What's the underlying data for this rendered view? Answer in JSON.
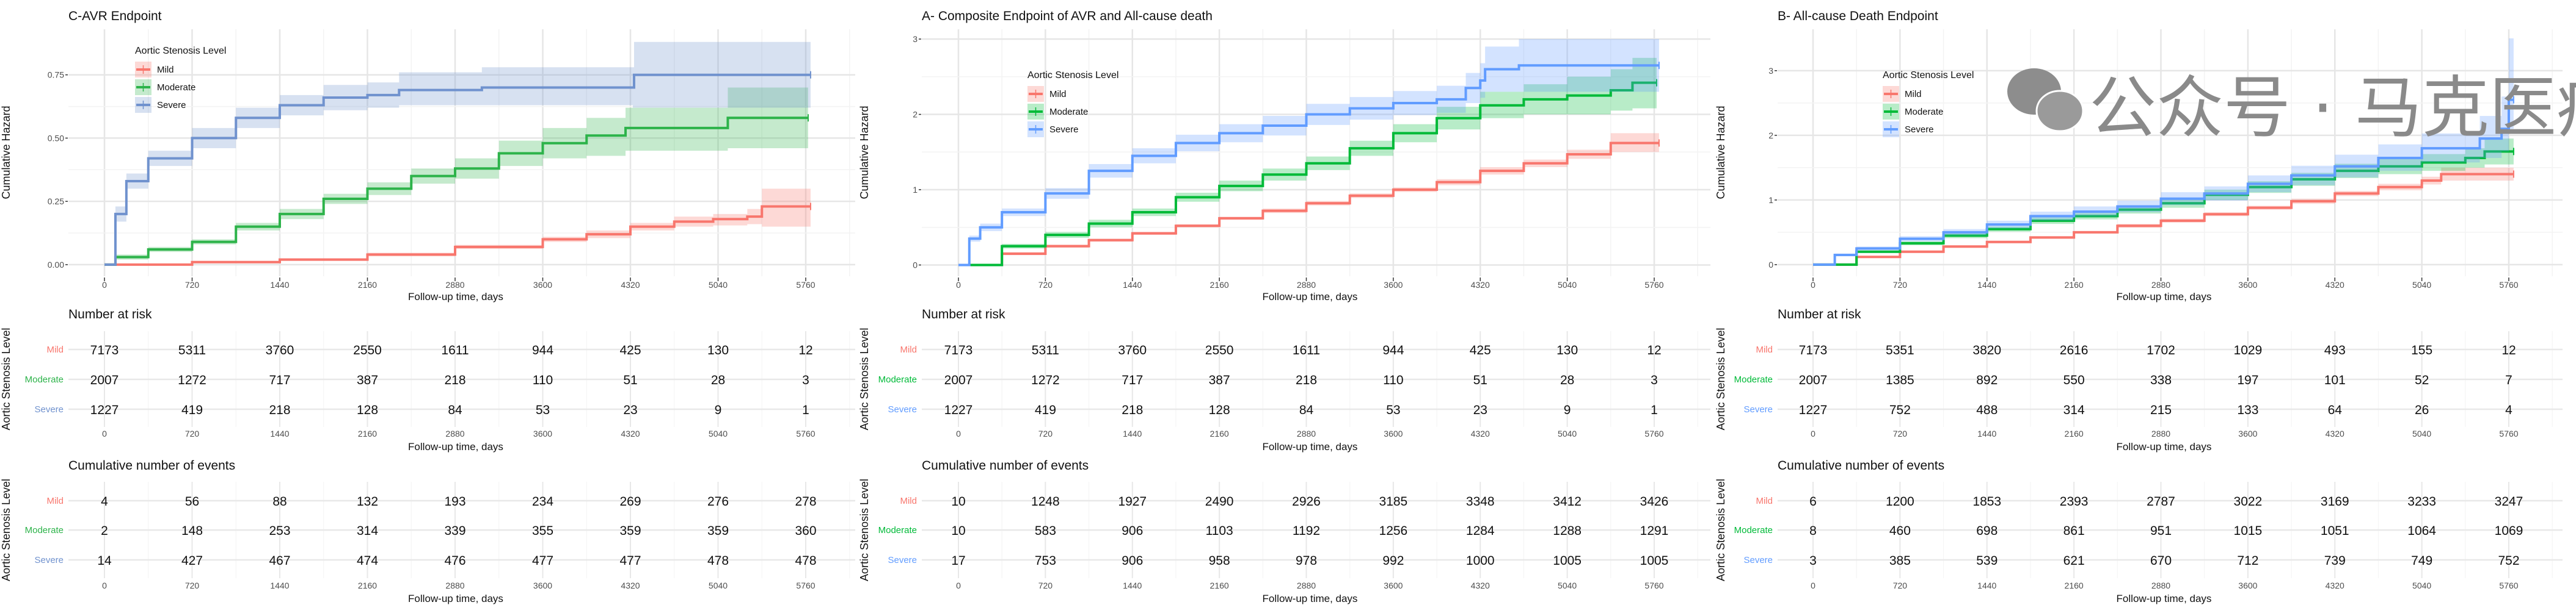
{
  "legend_title": "Aortic Stenosis Level",
  "groups": [
    "Mild",
    "Moderate",
    "Severe"
  ],
  "xlabel": "Follow-up time, days",
  "ylabel": "Cumulative Hazard",
  "table_ylabel": "Aortic Stenosis Level",
  "risk_title": "Number at risk",
  "events_title": "Cumulative number of events",
  "x_ticks": [
    "0",
    "720",
    "1440",
    "2160",
    "2880",
    "3600",
    "4320",
    "5040",
    "5760"
  ],
  "watermark": "公众号 · 马克医疗",
  "chart_data": [
    {
      "type": "line",
      "title": "C-AVR Endpoint",
      "xlim": [
        0,
        5900
      ],
      "ylim": [
        -0.046,
        0.93
      ],
      "y_ticks": [
        0,
        0.25,
        0.5,
        0.75
      ],
      "y_tick_labels": [
        "0.00",
        "0.25",
        "0.50",
        "0.75"
      ],
      "grid": true,
      "legend_position": "top-left",
      "colors": [
        "#F8766D",
        "#2DB34A",
        "#7092CE"
      ],
      "series": [
        {
          "name": "Mild",
          "t": [
            0,
            720,
            1440,
            2160,
            2880,
            3600,
            3960,
            4320,
            4680,
            5000,
            5280,
            5400,
            5800
          ],
          "est": [
            0,
            0.01,
            0.02,
            0.04,
            0.07,
            0.1,
            0.12,
            0.15,
            0.17,
            0.18,
            0.19,
            0.23,
            0.23
          ],
          "lo": [
            0,
            0.005,
            0.015,
            0.033,
            0.062,
            0.09,
            0.105,
            0.135,
            0.15,
            0.155,
            0.16,
            0.15,
            0.15
          ],
          "hi": [
            0,
            0.015,
            0.025,
            0.047,
            0.078,
            0.11,
            0.135,
            0.165,
            0.19,
            0.2,
            0.22,
            0.3,
            0.3
          ]
        },
        {
          "name": "Moderate",
          "t": [
            0,
            90,
            360,
            720,
            1080,
            1440,
            1800,
            2160,
            2520,
            2880,
            3240,
            3600,
            3960,
            4280,
            5100,
            5120,
            5780
          ],
          "est": [
            0,
            0.03,
            0.06,
            0.09,
            0.15,
            0.2,
            0.26,
            0.3,
            0.35,
            0.38,
            0.44,
            0.48,
            0.51,
            0.54,
            0.54,
            0.58,
            0.58
          ],
          "lo": [
            0,
            0.02,
            0.05,
            0.08,
            0.135,
            0.18,
            0.24,
            0.275,
            0.32,
            0.34,
            0.39,
            0.42,
            0.43,
            0.45,
            0.45,
            0.46,
            0.46
          ],
          "hi": [
            0,
            0.04,
            0.07,
            0.1,
            0.165,
            0.22,
            0.28,
            0.325,
            0.38,
            0.42,
            0.49,
            0.54,
            0.58,
            0.62,
            0.62,
            0.7,
            0.7
          ]
        },
        {
          "name": "Severe",
          "t": [
            0,
            90,
            180,
            360,
            720,
            1080,
            1440,
            1800,
            2160,
            2400,
            2420,
            3100,
            4340,
            4350,
            5800
          ],
          "est": [
            0,
            0.2,
            0.33,
            0.42,
            0.5,
            0.58,
            0.63,
            0.66,
            0.67,
            0.67,
            0.69,
            0.7,
            0.7,
            0.75,
            0.75
          ],
          "lo": [
            0,
            0.17,
            0.3,
            0.39,
            0.46,
            0.54,
            0.59,
            0.61,
            0.62,
            0.62,
            0.63,
            0.63,
            0.62,
            0.62,
            0.62
          ],
          "hi": [
            0,
            0.23,
            0.36,
            0.45,
            0.54,
            0.62,
            0.67,
            0.71,
            0.72,
            0.72,
            0.76,
            0.78,
            0.78,
            0.88,
            0.88
          ]
        }
      ],
      "risk_table": {
        "Mild": [
          7173,
          5311,
          3760,
          2550,
          1611,
          944,
          425,
          130,
          12
        ],
        "Moderate": [
          2007,
          1272,
          717,
          387,
          218,
          110,
          51,
          28,
          3
        ],
        "Severe": [
          1227,
          419,
          218,
          128,
          84,
          53,
          23,
          9,
          1
        ]
      },
      "events_table": {
        "Mild": [
          4,
          56,
          88,
          132,
          193,
          234,
          269,
          276,
          278
        ],
        "Moderate": [
          2,
          148,
          253,
          314,
          339,
          355,
          359,
          359,
          360
        ],
        "Severe": [
          14,
          427,
          467,
          474,
          476,
          477,
          477,
          478,
          478
        ]
      }
    },
    {
      "type": "line",
      "title": "A- Composite Endpoint of AVR and All-cause death",
      "xlim": [
        0,
        5900
      ],
      "ylim": [
        -0.15,
        3.13
      ],
      "y_ticks": [
        0,
        1,
        2,
        3
      ],
      "y_tick_labels": [
        "0",
        "1",
        "2",
        "3"
      ],
      "grid": true,
      "legend_position": "top-left",
      "colors": [
        "#F8766D",
        "#00BA38",
        "#619CFF"
      ],
      "series": [
        {
          "name": "Mild",
          "t": [
            0,
            360,
            720,
            1080,
            1440,
            1800,
            2160,
            2520,
            2880,
            3240,
            3600,
            3960,
            4320,
            4680,
            5040,
            5400,
            5800
          ],
          "est": [
            0,
            0.15,
            0.25,
            0.33,
            0.42,
            0.52,
            0.62,
            0.72,
            0.82,
            0.92,
            1.0,
            1.1,
            1.25,
            1.35,
            1.47,
            1.62,
            1.62
          ],
          "lo": [
            0,
            0.13,
            0.23,
            0.31,
            0.4,
            0.5,
            0.6,
            0.69,
            0.79,
            0.89,
            0.97,
            1.06,
            1.2,
            1.3,
            1.41,
            1.5,
            1.5
          ],
          "hi": [
            0,
            0.17,
            0.27,
            0.35,
            0.44,
            0.54,
            0.64,
            0.75,
            0.85,
            0.95,
            1.03,
            1.14,
            1.3,
            1.4,
            1.53,
            1.75,
            1.75
          ]
        },
        {
          "name": "Moderate",
          "t": [
            0,
            360,
            720,
            1080,
            1440,
            1800,
            2160,
            2520,
            2880,
            3240,
            3600,
            3960,
            4320,
            4680,
            5040,
            5400,
            5580,
            5780
          ],
          "est": [
            0,
            0.25,
            0.4,
            0.55,
            0.7,
            0.9,
            1.05,
            1.2,
            1.35,
            1.55,
            1.75,
            1.95,
            2.12,
            2.2,
            2.25,
            2.32,
            2.42,
            2.42
          ],
          "lo": [
            0,
            0.22,
            0.36,
            0.5,
            0.65,
            0.84,
            0.98,
            1.12,
            1.26,
            1.45,
            1.63,
            1.8,
            1.95,
            2.0,
            2.0,
            2.05,
            2.08,
            2.08
          ],
          "hi": [
            0,
            0.28,
            0.44,
            0.6,
            0.75,
            0.96,
            1.12,
            1.28,
            1.44,
            1.65,
            1.87,
            2.1,
            2.3,
            2.4,
            2.5,
            2.6,
            2.75,
            2.75
          ]
        },
        {
          "name": "Severe",
          "t": [
            0,
            90,
            180,
            360,
            720,
            1080,
            1440,
            1800,
            2160,
            2520,
            2880,
            3240,
            3600,
            3960,
            4200,
            4320,
            4360,
            4640,
            5800
          ],
          "est": [
            0,
            0.35,
            0.5,
            0.7,
            0.95,
            1.25,
            1.45,
            1.62,
            1.75,
            1.85,
            2.0,
            2.08,
            2.15,
            2.2,
            2.35,
            2.45,
            2.6,
            2.65,
            2.65
          ],
          "lo": [
            0,
            0.31,
            0.45,
            0.65,
            0.88,
            1.16,
            1.35,
            1.51,
            1.63,
            1.72,
            1.86,
            1.93,
            1.99,
            2.02,
            2.15,
            2.22,
            2.3,
            2.3,
            2.3
          ],
          "hi": [
            0,
            0.39,
            0.55,
            0.75,
            1.02,
            1.34,
            1.55,
            1.73,
            1.87,
            1.98,
            2.14,
            2.23,
            2.31,
            2.38,
            2.55,
            2.68,
            2.9,
            3.0,
            3.0
          ]
        }
      ],
      "risk_table": {
        "Mild": [
          7173,
          5311,
          3760,
          2550,
          1611,
          944,
          425,
          130,
          12
        ],
        "Moderate": [
          2007,
          1272,
          717,
          387,
          218,
          110,
          51,
          28,
          3
        ],
        "Severe": [
          1227,
          419,
          218,
          128,
          84,
          53,
          23,
          9,
          1
        ]
      },
      "events_table": {
        "Mild": [
          10,
          1248,
          1927,
          2490,
          2926,
          3185,
          3348,
          3412,
          3426
        ],
        "Moderate": [
          10,
          583,
          906,
          1103,
          1192,
          1256,
          1284,
          1288,
          1291
        ],
        "Severe": [
          17,
          753,
          906,
          958,
          978,
          992,
          1000,
          1005,
          1005
        ]
      }
    },
    {
      "type": "line",
      "title": "B- All-cause Death Endpoint",
      "xlim": [
        0,
        5900
      ],
      "ylim": [
        -0.18,
        3.64
      ],
      "y_ticks": [
        0,
        1,
        2,
        3
      ],
      "y_tick_labels": [
        "0",
        "1",
        "2",
        "3"
      ],
      "grid": true,
      "legend_position": "top-left",
      "colors": [
        "#F8766D",
        "#00BA38",
        "#619CFF"
      ],
      "series": [
        {
          "name": "Mild",
          "t": [
            0,
            360,
            720,
            1080,
            1440,
            1800,
            2160,
            2520,
            2880,
            3240,
            3600,
            3960,
            4320,
            4680,
            5040,
            5200,
            5800
          ],
          "est": [
            0,
            0.12,
            0.2,
            0.28,
            0.35,
            0.42,
            0.5,
            0.6,
            0.68,
            0.78,
            0.88,
            0.98,
            1.1,
            1.2,
            1.3,
            1.4,
            1.4
          ],
          "lo": [
            0,
            0.11,
            0.18,
            0.26,
            0.33,
            0.4,
            0.48,
            0.57,
            0.65,
            0.75,
            0.85,
            0.94,
            1.06,
            1.15,
            1.24,
            1.3,
            1.3
          ],
          "hi": [
            0,
            0.13,
            0.22,
            0.3,
            0.37,
            0.44,
            0.52,
            0.63,
            0.71,
            0.81,
            0.91,
            1.02,
            1.14,
            1.25,
            1.36,
            1.5,
            1.5
          ]
        },
        {
          "name": "Moderate",
          "t": [
            0,
            360,
            720,
            1080,
            1440,
            1800,
            2160,
            2520,
            2880,
            3240,
            3600,
            3960,
            4320,
            4680,
            5040,
            5400,
            5560,
            5800
          ],
          "est": [
            0,
            0.2,
            0.33,
            0.45,
            0.55,
            0.68,
            0.75,
            0.85,
            0.95,
            1.08,
            1.2,
            1.32,
            1.45,
            1.52,
            1.58,
            1.65,
            1.75,
            1.75
          ],
          "lo": [
            0,
            0.18,
            0.3,
            0.41,
            0.51,
            0.63,
            0.7,
            0.79,
            0.88,
            1.0,
            1.11,
            1.22,
            1.34,
            1.4,
            1.45,
            1.5,
            1.55,
            1.55
          ],
          "hi": [
            0,
            0.22,
            0.36,
            0.49,
            0.59,
            0.73,
            0.8,
            0.91,
            1.02,
            1.16,
            1.29,
            1.42,
            1.56,
            1.64,
            1.71,
            1.8,
            1.95,
            1.95
          ]
        },
        {
          "name": "Severe",
          "t": [
            0,
            180,
            360,
            720,
            1080,
            1440,
            1800,
            2160,
            2520,
            2880,
            3240,
            3600,
            3960,
            4320,
            4680,
            5040,
            5520,
            5700,
            5760,
            5800
          ],
          "est": [
            0,
            0.15,
            0.25,
            0.4,
            0.5,
            0.62,
            0.75,
            0.82,
            0.9,
            1.02,
            1.1,
            1.25,
            1.38,
            1.52,
            1.65,
            1.8,
            1.95,
            2.1,
            2.55,
            2.55
          ],
          "lo": [
            0,
            0.13,
            0.22,
            0.36,
            0.45,
            0.56,
            0.68,
            0.74,
            0.81,
            0.92,
            0.99,
            1.12,
            1.23,
            1.35,
            1.45,
            1.58,
            1.65,
            1.75,
            2.1,
            2.1
          ],
          "hi": [
            0,
            0.17,
            0.28,
            0.44,
            0.55,
            0.68,
            0.82,
            0.9,
            0.99,
            1.12,
            1.21,
            1.38,
            1.53,
            1.7,
            1.86,
            2.03,
            2.3,
            2.6,
            3.5,
            3.5
          ]
        }
      ],
      "risk_table": {
        "Mild": [
          7173,
          5351,
          3820,
          2616,
          1702,
          1029,
          493,
          155,
          12
        ],
        "Moderate": [
          2007,
          1385,
          892,
          550,
          338,
          197,
          101,
          52,
          7
        ],
        "Severe": [
          1227,
          752,
          488,
          314,
          215,
          133,
          64,
          26,
          4
        ]
      },
      "events_table": {
        "Mild": [
          6,
          1200,
          1853,
          2393,
          2787,
          3022,
          3169,
          3233,
          3247
        ],
        "Moderate": [
          8,
          460,
          698,
          861,
          951,
          1015,
          1051,
          1064,
          1069
        ],
        "Severe": [
          3,
          385,
          539,
          621,
          670,
          712,
          739,
          749,
          752
        ]
      }
    }
  ]
}
